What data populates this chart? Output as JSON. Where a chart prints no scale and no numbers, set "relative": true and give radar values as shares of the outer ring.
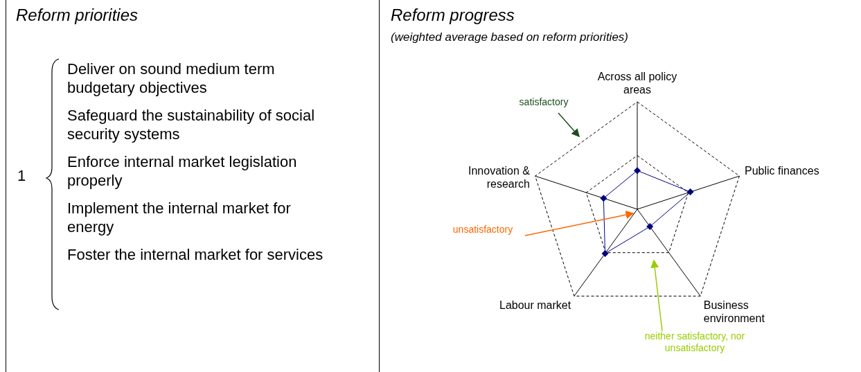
{
  "chart_data": [
    {
      "type": "other",
      "title": "Reform priorities",
      "annotations": [
        "1",
        "Deliver on sound medium term budgetary objectives",
        "Safeguard the sustainability of social security systems",
        "Enforce internal market legislation properly",
        "Implement the internal market for energy",
        "Foster the internal market for services"
      ]
    },
    {
      "type": "radar",
      "title": "Reform progress",
      "subtitle": "(weighted average based on reform priorities)",
      "categories": [
        "Across all policy areas",
        "Public finances",
        "Business environment",
        "Labour market",
        "Innovation & research"
      ],
      "relative": true,
      "grid": true,
      "marker": "diamond",
      "series": [
        {
          "color": "#000080",
          "values": [
            0.36,
            0.52,
            0.2,
            0.51,
            0.33
          ]
        }
      ],
      "annotations": [
        "satisfactory",
        "unsatisfactory",
        "neither satisfactory, nor unsatisfactory"
      ]
    }
  ]
}
